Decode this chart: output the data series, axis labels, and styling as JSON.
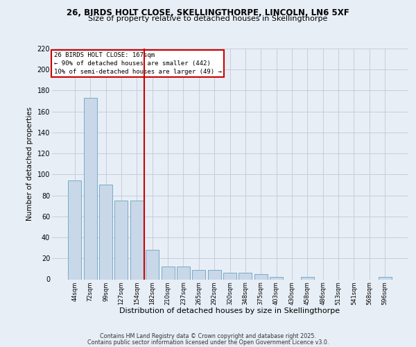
{
  "title1": "26, BIRDS HOLT CLOSE, SKELLINGTHORPE, LINCOLN, LN6 5XF",
  "title2": "Size of property relative to detached houses in Skellingthorpe",
  "xlabel": "Distribution of detached houses by size in Skellingthorpe",
  "ylabel": "Number of detached properties",
  "categories": [
    "44sqm",
    "72sqm",
    "99sqm",
    "127sqm",
    "154sqm",
    "182sqm",
    "210sqm",
    "237sqm",
    "265sqm",
    "292sqm",
    "320sqm",
    "348sqm",
    "375sqm",
    "403sqm",
    "430sqm",
    "458sqm",
    "486sqm",
    "513sqm",
    "541sqm",
    "568sqm",
    "596sqm"
  ],
  "values": [
    94,
    173,
    90,
    75,
    75,
    28,
    12,
    12,
    9,
    9,
    6,
    6,
    5,
    2,
    0,
    2,
    0,
    0,
    0,
    0,
    2
  ],
  "bar_color": "#c8d8e8",
  "bar_edge_color": "#7aaac8",
  "grid_color": "#c0c8d8",
  "background_color": "#e8eef6",
  "red_line_index": 5,
  "annotation_line1": "26 BIRDS HOLT CLOSE: 167sqm",
  "annotation_line2": "← 90% of detached houses are smaller (442)",
  "annotation_line3": "10% of semi-detached houses are larger (49) →",
  "annotation_box_color": "#ffffff",
  "annotation_box_edge": "#cc0000",
  "red_line_color": "#cc0000",
  "ylim": [
    0,
    220
  ],
  "yticks": [
    0,
    20,
    40,
    60,
    80,
    100,
    120,
    140,
    160,
    180,
    200,
    220
  ],
  "footer1": "Contains HM Land Registry data © Crown copyright and database right 2025.",
  "footer2": "Contains public sector information licensed under the Open Government Licence v3.0."
}
